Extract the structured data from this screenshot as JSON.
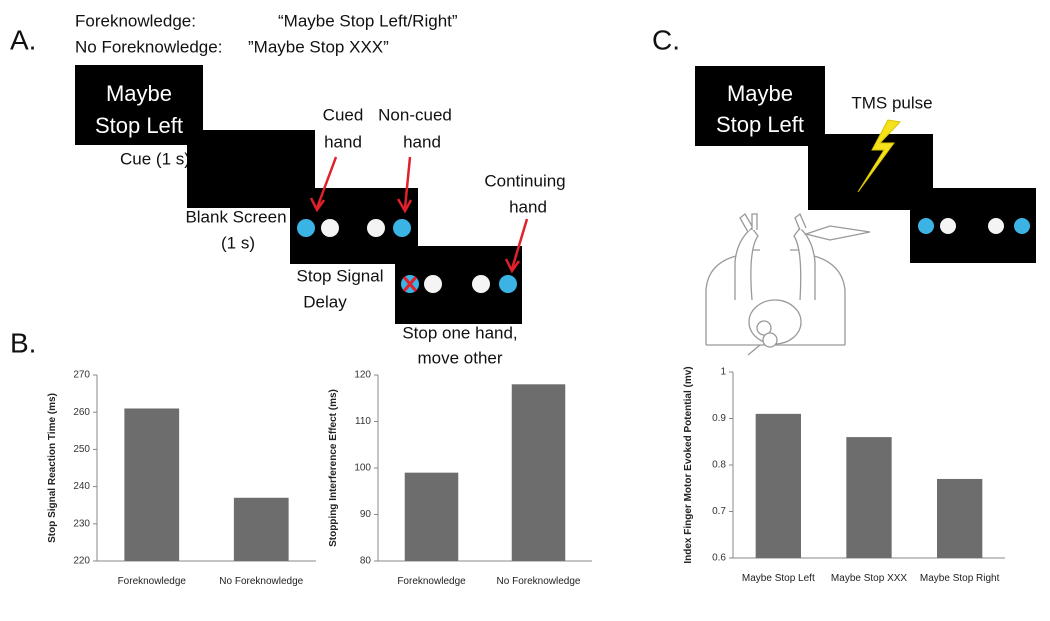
{
  "panel_labels": [
    "A.",
    "B.",
    "C."
  ],
  "panel_a": {
    "condition_lines": [
      [
        "Foreknowledge:",
        "“Maybe Stop Left/Right”"
      ],
      [
        "No Foreknowledge:",
        "”Maybe Stop XXX”"
      ]
    ],
    "cue_screen": [
      "Maybe",
      "Stop Left"
    ],
    "cue_label": "Cue (1 s)",
    "blank_label": [
      "Blank Screen",
      "(1 s)"
    ],
    "cued_hand": [
      "Cued",
      "hand"
    ],
    "non_cued_hand": [
      "Non-cued",
      "hand"
    ],
    "continuing_hand": [
      "Continuing",
      "hand"
    ],
    "ssd_label": [
      "Stop Signal",
      "Delay"
    ],
    "stop_label": [
      "Stop one hand,",
      "move other"
    ]
  },
  "panel_c": {
    "cue_screen": [
      "Maybe",
      "Stop Left"
    ],
    "tms_label": "TMS pulse"
  },
  "chart_data": [
    {
      "type": "bar",
      "ylabel": "Stop Signal Reaction Time (ms)",
      "categories": [
        "Foreknowledge",
        "No Foreknowledge"
      ],
      "values": [
        261,
        237
      ],
      "color": "#6d6d6d",
      "ylim": [
        220,
        270
      ],
      "yticks": [
        220,
        230,
        240,
        250,
        260,
        270
      ]
    },
    {
      "type": "bar",
      "ylabel": "Stopping Interference Effect (ms)",
      "categories": [
        "Foreknowledge",
        "No Foreknowledge"
      ],
      "values": [
        99,
        118
      ],
      "color": "#6d6d6d",
      "ylim": [
        80,
        120
      ],
      "yticks": [
        80,
        90,
        100,
        110,
        120
      ]
    },
    {
      "type": "bar",
      "ylabel": "Index Finger Motor Evoked Potential (mv)",
      "categories": [
        "Maybe Stop Left",
        "Maybe Stop XXX",
        "Maybe Stop Right"
      ],
      "values": [
        0.91,
        0.86,
        0.77
      ],
      "color": "#6d6d6d",
      "ylim": [
        0.6,
        1
      ],
      "yticks": [
        0.6,
        0.7,
        0.8,
        0.9,
        1
      ]
    }
  ]
}
